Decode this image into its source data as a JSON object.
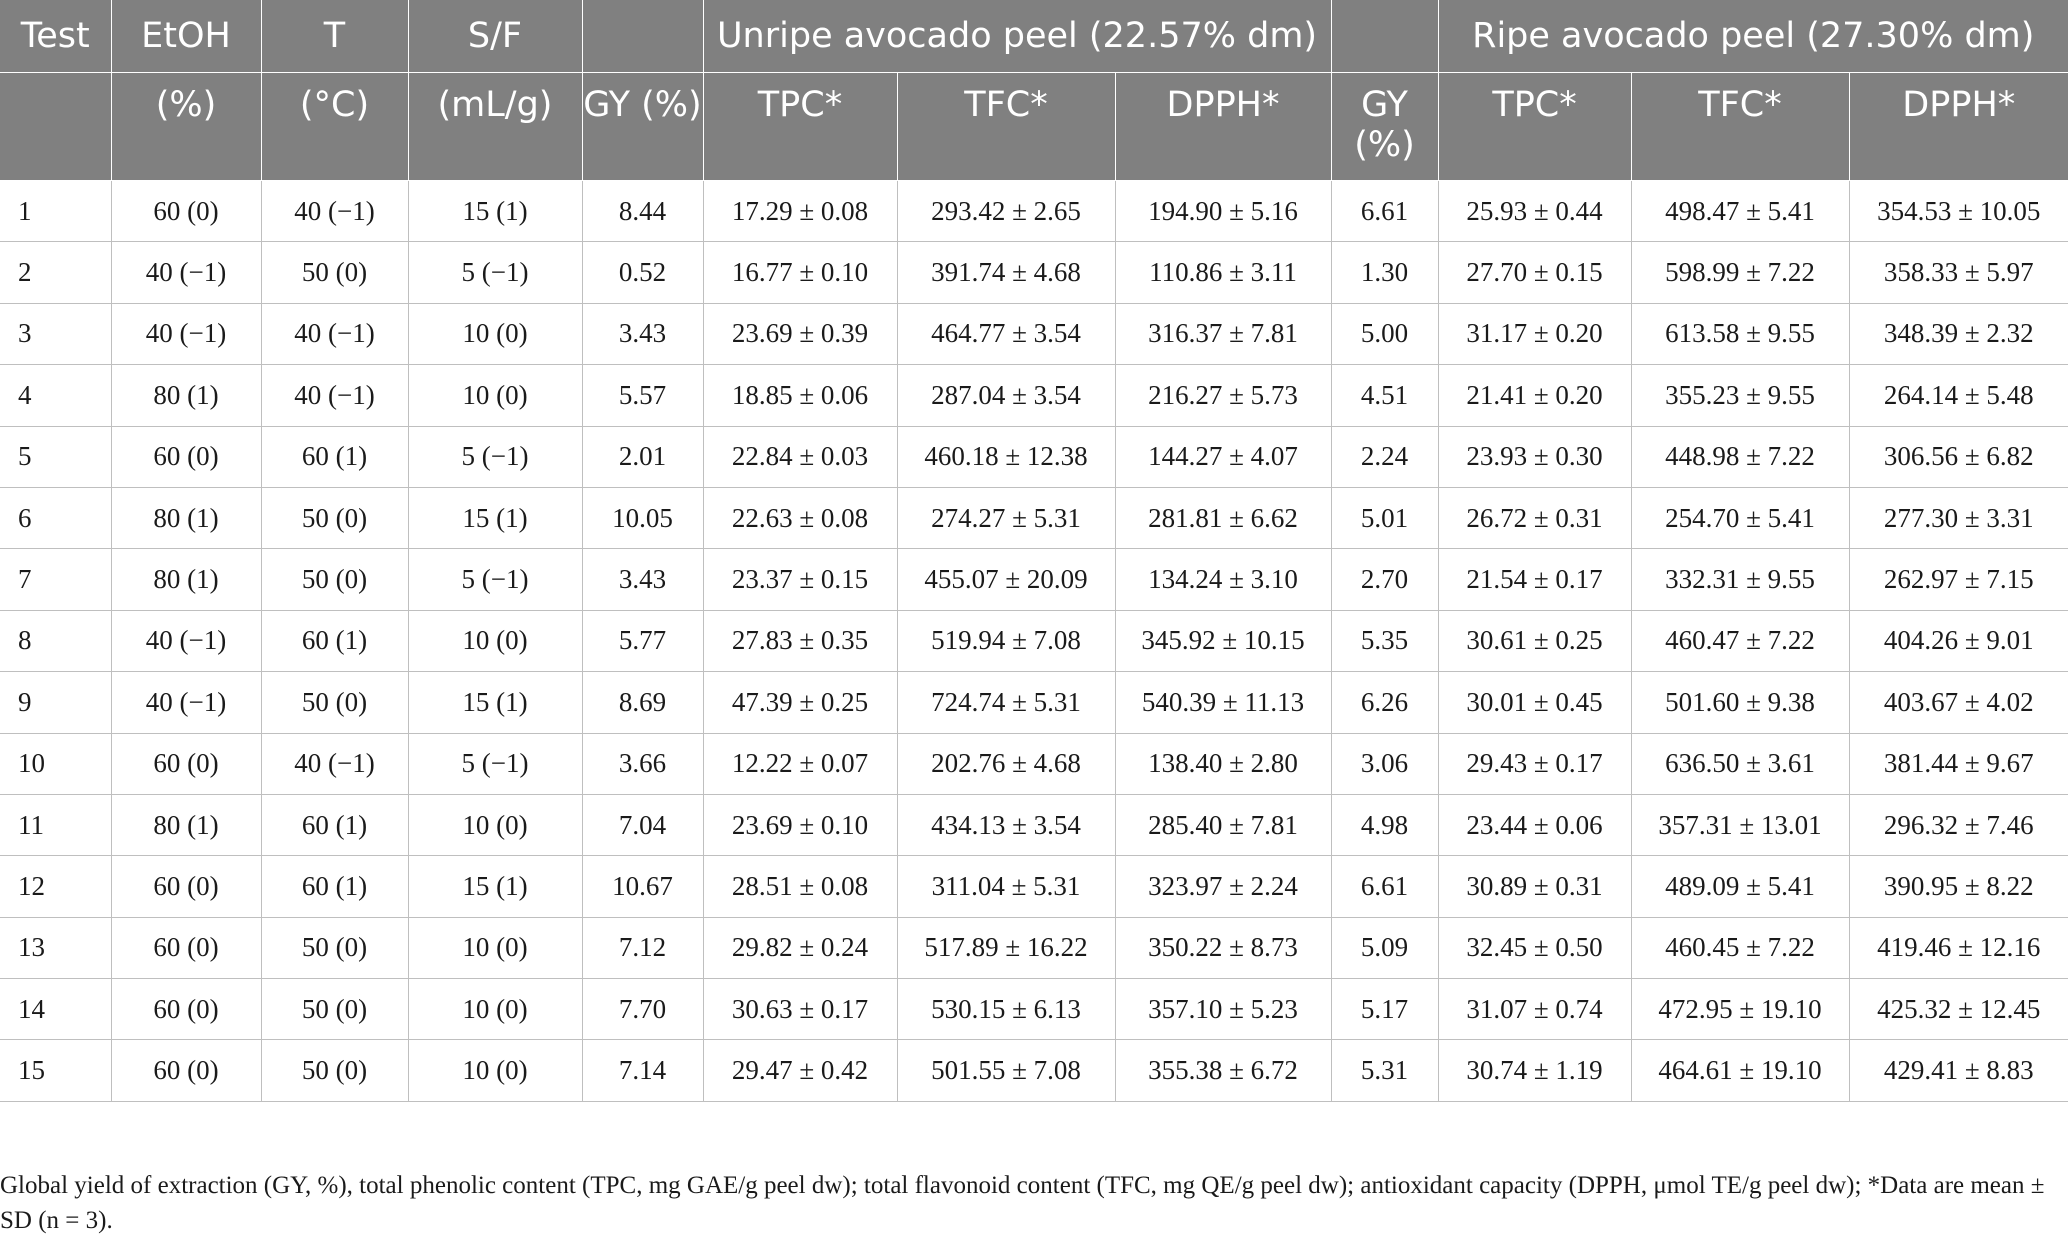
{
  "header": {
    "row1": [
      "Test",
      "EtOH",
      "T",
      "S/F",
      "",
      "Unripe avocado peel (22.57% dm)",
      "",
      "Ripe avocado peel (27.30% dm)"
    ],
    "row2": [
      "",
      "(%)",
      "(°C)",
      "(mL/g)",
      "GY (%)",
      "TPC*",
      "TFC*",
      "DPPH*",
      "GY (%)",
      "TPC*",
      "TFC*",
      "DPPH*"
    ]
  },
  "rows": [
    [
      "1",
      "60 (0)",
      "40 (−1)",
      "15 (1)",
      "8.44",
      "17.29 ± 0.08",
      "293.42 ± 2.65",
      "194.90 ± 5.16",
      "6.61",
      "25.93 ± 0.44",
      "498.47 ± 5.41",
      "354.53 ± 10.05"
    ],
    [
      "2",
      "40 (−1)",
      "50 (0)",
      "5 (−1)",
      "0.52",
      "16.77 ± 0.10",
      "391.74 ± 4.68",
      "110.86 ± 3.11",
      "1.30",
      "27.70 ± 0.15",
      "598.99 ± 7.22",
      "358.33 ± 5.97"
    ],
    [
      "3",
      "40 (−1)",
      "40 (−1)",
      "10 (0)",
      "3.43",
      "23.69 ± 0.39",
      "464.77 ± 3.54",
      "316.37 ± 7.81",
      "5.00",
      "31.17 ± 0.20",
      "613.58 ± 9.55",
      "348.39 ± 2.32"
    ],
    [
      "4",
      "80 (1)",
      "40 (−1)",
      "10 (0)",
      "5.57",
      "18.85 ± 0.06",
      "287.04 ± 3.54",
      "216.27 ± 5.73",
      "4.51",
      "21.41 ± 0.20",
      "355.23 ± 9.55",
      "264.14 ± 5.48"
    ],
    [
      "5",
      "60 (0)",
      "60 (1)",
      "5 (−1)",
      "2.01",
      "22.84 ± 0.03",
      "460.18 ± 12.38",
      "144.27 ± 4.07",
      "2.24",
      "23.93 ± 0.30",
      "448.98 ± 7.22",
      "306.56 ± 6.82"
    ],
    [
      "6",
      "80 (1)",
      "50 (0)",
      "15 (1)",
      "10.05",
      "22.63 ± 0.08",
      "274.27 ± 5.31",
      "281.81 ± 6.62",
      "5.01",
      "26.72 ± 0.31",
      "254.70 ± 5.41",
      "277.30 ± 3.31"
    ],
    [
      "7",
      "80 (1)",
      "50 (0)",
      "5 (−1)",
      "3.43",
      "23.37 ± 0.15",
      "455.07 ± 20.09",
      "134.24 ± 3.10",
      "2.70",
      "21.54 ± 0.17",
      "332.31 ± 9.55",
      "262.97 ± 7.15"
    ],
    [
      "8",
      "40 (−1)",
      "60 (1)",
      "10 (0)",
      "5.77",
      "27.83 ± 0.35",
      "519.94 ± 7.08",
      "345.92 ± 10.15",
      "5.35",
      "30.61 ± 0.25",
      "460.47 ± 7.22",
      "404.26 ± 9.01"
    ],
    [
      "9",
      "40 (−1)",
      "50 (0)",
      "15 (1)",
      "8.69",
      "47.39 ± 0.25",
      "724.74 ± 5.31",
      "540.39 ± 11.13",
      "6.26",
      "30.01 ± 0.45",
      "501.60 ± 9.38",
      "403.67 ± 4.02"
    ],
    [
      "10",
      "60 (0)",
      "40 (−1)",
      "5 (−1)",
      "3.66",
      "12.22 ± 0.07",
      "202.76 ± 4.68",
      "138.40 ± 2.80",
      "3.06",
      "29.43 ± 0.17",
      "636.50 ± 3.61",
      "381.44 ± 9.67"
    ],
    [
      "11",
      "80 (1)",
      "60 (1)",
      "10 (0)",
      "7.04",
      "23.69 ± 0.10",
      "434.13 ± 3.54",
      "285.40 ± 7.81",
      "4.98",
      "23.44 ± 0.06",
      "357.31 ± 13.01",
      "296.32 ± 7.46"
    ],
    [
      "12",
      "60 (0)",
      "60 (1)",
      "15 (1)",
      "10.67",
      "28.51 ± 0.08",
      "311.04 ± 5.31",
      "323.97 ± 2.24",
      "6.61",
      "30.89 ± 0.31",
      "489.09 ± 5.41",
      "390.95 ± 8.22"
    ],
    [
      "13",
      "60 (0)",
      "50 (0)",
      "10 (0)",
      "7.12",
      "29.82 ± 0.24",
      "517.89 ± 16.22",
      "350.22 ± 8.73",
      "5.09",
      "32.45 ± 0.50",
      "460.45 ± 7.22",
      "419.46 ± 12.16"
    ],
    [
      "14",
      "60 (0)",
      "50 (0)",
      "10 (0)",
      "7.70",
      "30.63 ± 0.17",
      "530.15 ± 6.13",
      "357.10 ± 5.23",
      "5.17",
      "31.07 ± 0.74",
      "472.95 ± 19.10",
      "425.32 ± 12.45"
    ],
    [
      "15",
      "60 (0)",
      "50 (0)",
      "10 (0)",
      "7.14",
      "29.47 ± 0.42",
      "501.55 ± 7.08",
      "355.38 ± 6.72",
      "5.31",
      "30.74 ± 1.19",
      "464.61 ± 19.10",
      "429.41 ± 8.83"
    ]
  ],
  "footnote": "Global yield of extraction (GY, %), total phenolic content (TPC, mg GAE/g peel dw); total flavonoid content (TFC, mg QE/g peel dw); antioxidant capacity (DPPH, μmol TE/g peel dw); *Data are mean ± SD (n = 3)."
}
